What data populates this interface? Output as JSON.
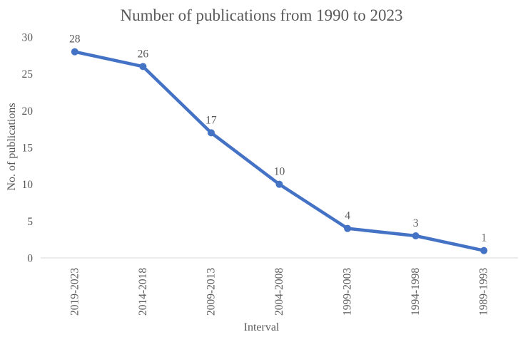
{
  "chart_data": {
    "type": "line",
    "title": "Number of publications from 1990 to 2023",
    "categories": [
      "2019-2023",
      "2014-2018",
      "2009-2013",
      "2004-2008",
      "1999-2003",
      "1994-1998",
      "1989-1993"
    ],
    "values": [
      28,
      26,
      17,
      10,
      4,
      3,
      1
    ],
    "xlabel": "Interval",
    "ylabel": "No. of publications",
    "yticks": [
      0,
      5,
      10,
      15,
      20,
      25,
      30
    ],
    "ylim": [
      0,
      30
    ],
    "grid": false,
    "legend": "none",
    "marker": "circle",
    "data_labels": true,
    "colors": {
      "line": "#4472C4",
      "text": "#595959",
      "axis_line": "#D9D9D9"
    }
  }
}
